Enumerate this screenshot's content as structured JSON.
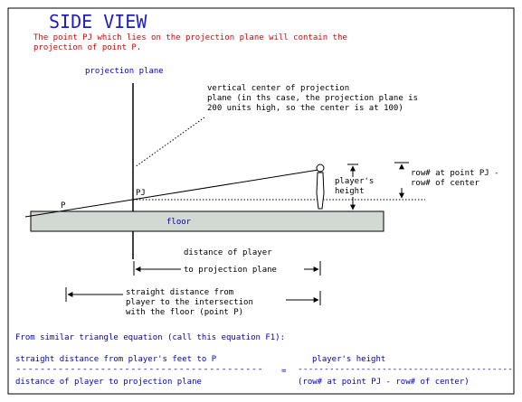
{
  "title": "SIDE VIEW",
  "intro": [
    "The point PJ which lies on the projection plane will contain the",
    "projection of point P."
  ],
  "labels": {
    "projection_plane": "projection plane",
    "vertical_center": [
      "vertical center of projection",
      "plane (in ths case, the projection plane is",
      "200 units high, so the center is at 100)"
    ],
    "players_height": [
      "player's",
      "height"
    ],
    "row_note": [
      "row# at point PJ -",
      "row# of center"
    ],
    "point_p": "P",
    "point_pj": "PJ",
    "floor": "floor",
    "distance_to_plane": [
      "distance of player",
      "to projection plane"
    ],
    "straight_distance": [
      "straight distance from",
      "player to the intersection",
      "with the floor (point P)"
    ]
  },
  "equation": {
    "heading": "From similar triangle equation (call this equation F1):",
    "lhs_numerator": "straight distance from player's feet to P",
    "rhs_numerator": "player's height",
    "lhs_bar": "-----------------------------------------",
    "equals": "=",
    "rhs_bar": "-----------------------------------------",
    "lhs_denominator": "distance of player to projection plane",
    "rhs_denominator": "(row# at point PJ - row# of center)"
  },
  "colors": {
    "title": "#1c1ccc",
    "intro": "#e00000",
    "label_blue": "#0000cc",
    "floor_fill": "#d2d8d2",
    "border": "#000000"
  }
}
